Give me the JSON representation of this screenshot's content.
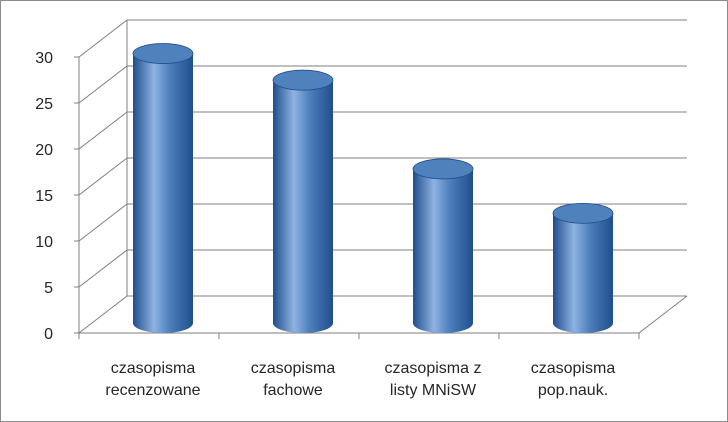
{
  "chart_data": {
    "type": "bar",
    "style": "3d-cylinder",
    "title": "",
    "xlabel": "",
    "ylabel": "",
    "ylim": [
      0,
      30
    ],
    "yticks": [
      0,
      5,
      10,
      15,
      20,
      25,
      30
    ],
    "grid": true,
    "legend": "none",
    "categories": [
      [
        "czasopisma",
        "recenzowane"
      ],
      [
        "czasopisma",
        "fachowe"
      ],
      [
        "czasopisma z",
        "listy MNiSW"
      ],
      [
        "czasopisma",
        "pop.nauk."
      ]
    ],
    "values": [
      29,
      26,
      16,
      11
    ],
    "colors": {
      "bar_dark": "#1f4e8c",
      "bar_mid": "#4f81bd",
      "bar_light": "#8fb3e3",
      "grid": "#7f7f7f",
      "text": "#262626"
    }
  }
}
